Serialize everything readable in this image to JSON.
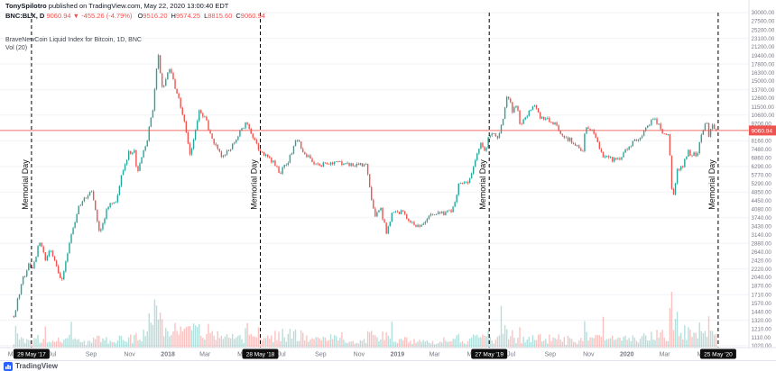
{
  "meta": {
    "publisher": "TonySpilotro",
    "publish_text": " published on TradingView.com, May 22, 2020 13:00:40 EDT"
  },
  "symbol": {
    "ticker": "BNC:BLX, D",
    "last": "9060.94",
    "direction": "▼",
    "change": "-455.26 (-4.79%)",
    "ohlc": [
      {
        "k": "O",
        "v": "9516.20"
      },
      {
        "k": "H",
        "v": "9574.25"
      },
      {
        "k": "L",
        "v": "8815.60"
      },
      {
        "k": "C",
        "v": "9060.94"
      }
    ]
  },
  "legend": {
    "title": "BraveNewCoin Liquid Index for Bitcoin, 1D, BNC",
    "vol": "Vol (20)"
  },
  "colors": {
    "up": "#26a69a",
    "down": "#ef5350",
    "vol_up": "rgba(38,166,154,0.35)",
    "vol_down": "rgba(239,83,80,0.35)",
    "accent_red": "#ef5350",
    "event_line": "#000000",
    "badge_bg": "#0f0f0f",
    "brand_blue": "#2962ff",
    "axis_text": "#787b86",
    "grid": "#f0f3f7"
  },
  "events": [
    {
      "label": "Memorial Day",
      "date": "29 May '17",
      "t": 0.042
    },
    {
      "label": "Memorial Day",
      "date": "28 May '18",
      "t": 0.3476
    },
    {
      "label": "Memorial Day",
      "date": "27 May '19",
      "t": 0.6532
    },
    {
      "label": "Memorial Day",
      "date": "25 May '20",
      "t": 0.9589
    }
  ],
  "time_axis": [
    {
      "label": "May",
      "t": 0.0185,
      "major": false
    },
    {
      "label": "Jul",
      "t": 0.0697,
      "major": false
    },
    {
      "label": "Sep",
      "t": 0.1218,
      "major": false
    },
    {
      "label": "Nov",
      "t": 0.173,
      "major": false
    },
    {
      "label": "2018",
      "t": 0.2242,
      "major": true
    },
    {
      "label": "Mar",
      "t": 0.2737,
      "major": false
    },
    {
      "label": "May",
      "t": 0.3249,
      "major": false
    },
    {
      "label": "Jul",
      "t": 0.3762,
      "major": false
    },
    {
      "label": "Sep",
      "t": 0.4282,
      "major": false
    },
    {
      "label": "Nov",
      "t": 0.4794,
      "major": false
    },
    {
      "label": "2019",
      "t": 0.5306,
      "major": true
    },
    {
      "label": "Mar",
      "t": 0.5802,
      "major": false
    },
    {
      "label": "May",
      "t": 0.6314,
      "major": false
    },
    {
      "label": "Jul",
      "t": 0.6826,
      "major": false
    },
    {
      "label": "Sep",
      "t": 0.7347,
      "major": false
    },
    {
      "label": "Nov",
      "t": 0.7859,
      "major": false
    },
    {
      "label": "2020",
      "t": 0.8371,
      "major": true
    },
    {
      "label": "Mar",
      "t": 0.8875,
      "major": false
    },
    {
      "label": "May",
      "t": 0.9387,
      "major": false
    }
  ],
  "price_axis": {
    "ticks": [
      30000,
      27500,
      25200,
      23100,
      21200,
      19400,
      17800,
      16300,
      15000,
      13700,
      12600,
      11500,
      10600,
      9700,
      8900,
      8160,
      7480,
      6860,
      6290,
      5770,
      5290,
      4850,
      4450,
      4080,
      3740,
      3430,
      3140,
      2880,
      2640,
      2420,
      2220,
      2040,
      1870,
      1710,
      1570,
      1440,
      1320,
      1210,
      1110,
      1020
    ],
    "last_price": 9060.94
  },
  "footer": {
    "brand": "TradingView"
  },
  "chart_data": {
    "type": "candlestick",
    "title": "BraveNewCoin Liquid Index for Bitcoin, 1D, BNC",
    "symbol": "BNC:BLX",
    "interval": "1D",
    "scale": "log",
    "has_volume": true,
    "price_range": [
      1000,
      30000
    ],
    "t_start": 0.0185,
    "t_end": 0.9563,
    "num_candles": 380,
    "last_close": 9060.94,
    "anchors": [
      [
        0.0185,
        1380
      ],
      [
        0.03,
        2000
      ],
      [
        0.039,
        2320
      ],
      [
        0.0445,
        2250
      ],
      [
        0.053,
        2960
      ],
      [
        0.06,
        2450
      ],
      [
        0.068,
        2700
      ],
      [
        0.082,
        1940
      ],
      [
        0.092,
        2800
      ],
      [
        0.105,
        4200
      ],
      [
        0.122,
        4900
      ],
      [
        0.133,
        3250
      ],
      [
        0.146,
        4350
      ],
      [
        0.155,
        4400
      ],
      [
        0.163,
        6000
      ],
      [
        0.172,
        7200
      ],
      [
        0.179,
        7400
      ],
      [
        0.183,
        5950
      ],
      [
        0.196,
        8100
      ],
      [
        0.204,
        11200
      ],
      [
        0.208,
        16000
      ],
      [
        0.212,
        19600
      ],
      [
        0.216,
        13800
      ],
      [
        0.222,
        15500
      ],
      [
        0.228,
        17100
      ],
      [
        0.235,
        13500
      ],
      [
        0.243,
        11200
      ],
      [
        0.254,
        6950
      ],
      [
        0.266,
        11250
      ],
      [
        0.276,
        9900
      ],
      [
        0.283,
        8200
      ],
      [
        0.298,
        6900
      ],
      [
        0.313,
        8000
      ],
      [
        0.328,
        9850
      ],
      [
        0.348,
        7250
      ],
      [
        0.366,
        6500
      ],
      [
        0.374,
        5900
      ],
      [
        0.385,
        6700
      ],
      [
        0.396,
        8250
      ],
      [
        0.41,
        7000
      ],
      [
        0.424,
        6300
      ],
      [
        0.445,
        6600
      ],
      [
        0.465,
        6500
      ],
      [
        0.489,
        6350
      ],
      [
        0.5,
        3750
      ],
      [
        0.508,
        4100
      ],
      [
        0.516,
        3200
      ],
      [
        0.524,
        3900
      ],
      [
        0.537,
        3950
      ],
      [
        0.545,
        3600
      ],
      [
        0.562,
        3400
      ],
      [
        0.578,
        3900
      ],
      [
        0.59,
        3900
      ],
      [
        0.606,
        4100
      ],
      [
        0.612,
        5250
      ],
      [
        0.625,
        5300
      ],
      [
        0.641,
        7950
      ],
      [
        0.648,
        7300
      ],
      [
        0.653,
        8750
      ],
      [
        0.662,
        8550
      ],
      [
        0.665,
        8100
      ],
      [
        0.678,
        13200
      ],
      [
        0.684,
        11000
      ],
      [
        0.69,
        11800
      ],
      [
        0.695,
        9500
      ],
      [
        0.703,
        10600
      ],
      [
        0.713,
        11900
      ],
      [
        0.722,
        10200
      ],
      [
        0.73,
        10300
      ],
      [
        0.742,
        9600
      ],
      [
        0.753,
        8350
      ],
      [
        0.762,
        8200
      ],
      [
        0.778,
        7450
      ],
      [
        0.781,
        9250
      ],
      [
        0.79,
        9200
      ],
      [
        0.806,
        6900
      ],
      [
        0.824,
        6650
      ],
      [
        0.833,
        7200
      ],
      [
        0.847,
        8100
      ],
      [
        0.857,
        8700
      ],
      [
        0.872,
        10350
      ],
      [
        0.886,
        8800
      ],
      [
        0.893,
        8900
      ],
      [
        0.8976,
        4400
      ],
      [
        0.905,
        6200
      ],
      [
        0.911,
        6300
      ],
      [
        0.918,
        7300
      ],
      [
        0.93,
        7000
      ],
      [
        0.937,
        8800
      ],
      [
        0.944,
        9950
      ],
      [
        0.946,
        8650
      ],
      [
        0.952,
        9650
      ],
      [
        0.9563,
        9060.94
      ]
    ]
  }
}
